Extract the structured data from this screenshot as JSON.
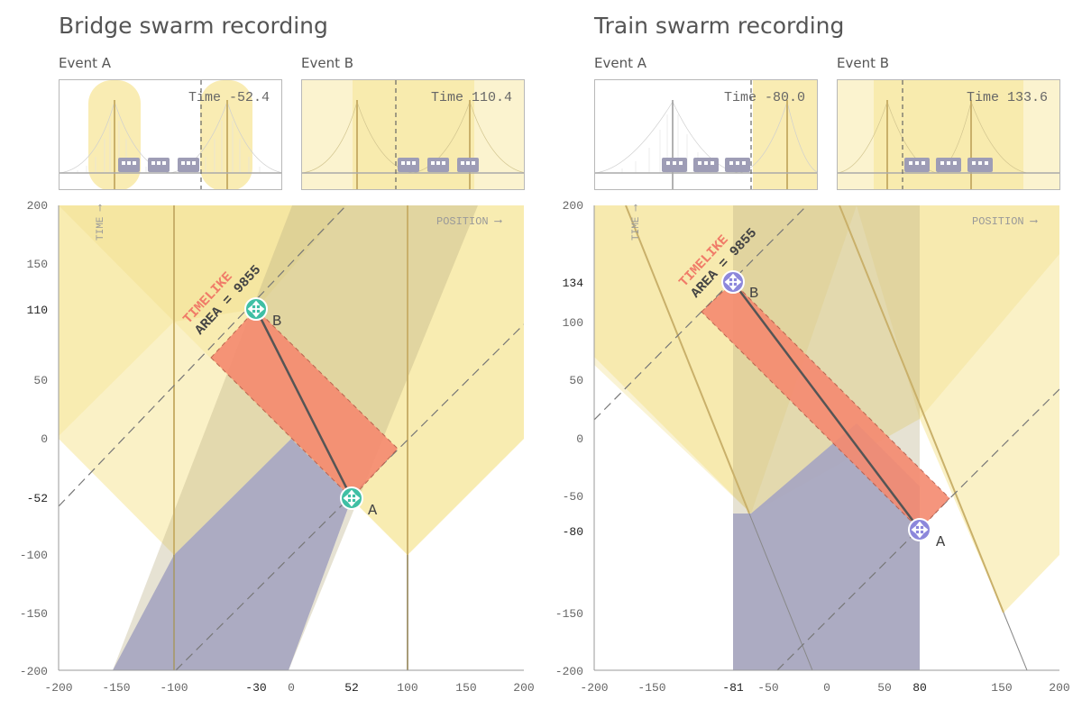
{
  "colors": {
    "lightcone": "#f7e7a0",
    "worldline": "#d6c27a",
    "past": "#a9a8c1",
    "interval": "#f59179",
    "timelike_text": "#f07b68",
    "bridge_handle": "#3fbfa4",
    "train_handle": "#8c87db"
  },
  "panels": [
    {
      "id": "bridge",
      "title": "Bridge swarm recording",
      "events": [
        {
          "label": "Event A",
          "time_label": "Time -52.4"
        },
        {
          "label": "Event B",
          "time_label": "Time 110.4"
        }
      ],
      "axis": {
        "x_label": "POSITION ⟶",
        "y_label": "TIME ⟶",
        "x_ticks": [
          "-200",
          "-150",
          "-100",
          "-30",
          "0",
          "52",
          "100",
          "150",
          "200"
        ],
        "y_ticks": [
          "200",
          "150",
          "110",
          "50",
          "0",
          "-52",
          "-100",
          "-150",
          "-200"
        ],
        "highlight_x": [
          "-30",
          "52"
        ],
        "highlight_y": [
          "110",
          "-52"
        ]
      },
      "badge": {
        "kind": "TIMELIKE",
        "area": "AREA = 9855"
      },
      "event_a": {
        "label": "A",
        "x": 52,
        "t": -52.4
      },
      "event_b": {
        "label": "B",
        "x": -30,
        "t": 110.4
      },
      "icon": "move-arrows-icon"
    },
    {
      "id": "train",
      "title": "Train swarm recording",
      "events": [
        {
          "label": "Event A",
          "time_label": "Time -80.0"
        },
        {
          "label": "Event B",
          "time_label": "Time 133.6"
        }
      ],
      "axis": {
        "x_label": "POSITION ⟶",
        "y_label": "TIME ⟶",
        "x_ticks": [
          "-200",
          "-150",
          "-81",
          "-50",
          "0",
          "50",
          "80",
          "150",
          "200"
        ],
        "y_ticks": [
          "200",
          "134",
          "100",
          "50",
          "0",
          "-50",
          "-80",
          "-150",
          "-200"
        ],
        "highlight_x": [
          "-81",
          "80"
        ],
        "highlight_y": [
          "134",
          "-80"
        ]
      },
      "badge": {
        "kind": "TIMELIKE",
        "area": "AREA = 9855"
      },
      "event_a": {
        "label": "A",
        "x": 80,
        "t": -80.0
      },
      "event_b": {
        "label": "B",
        "x": -81,
        "t": 133.6
      },
      "icon": "move-arrows-icon"
    }
  ]
}
